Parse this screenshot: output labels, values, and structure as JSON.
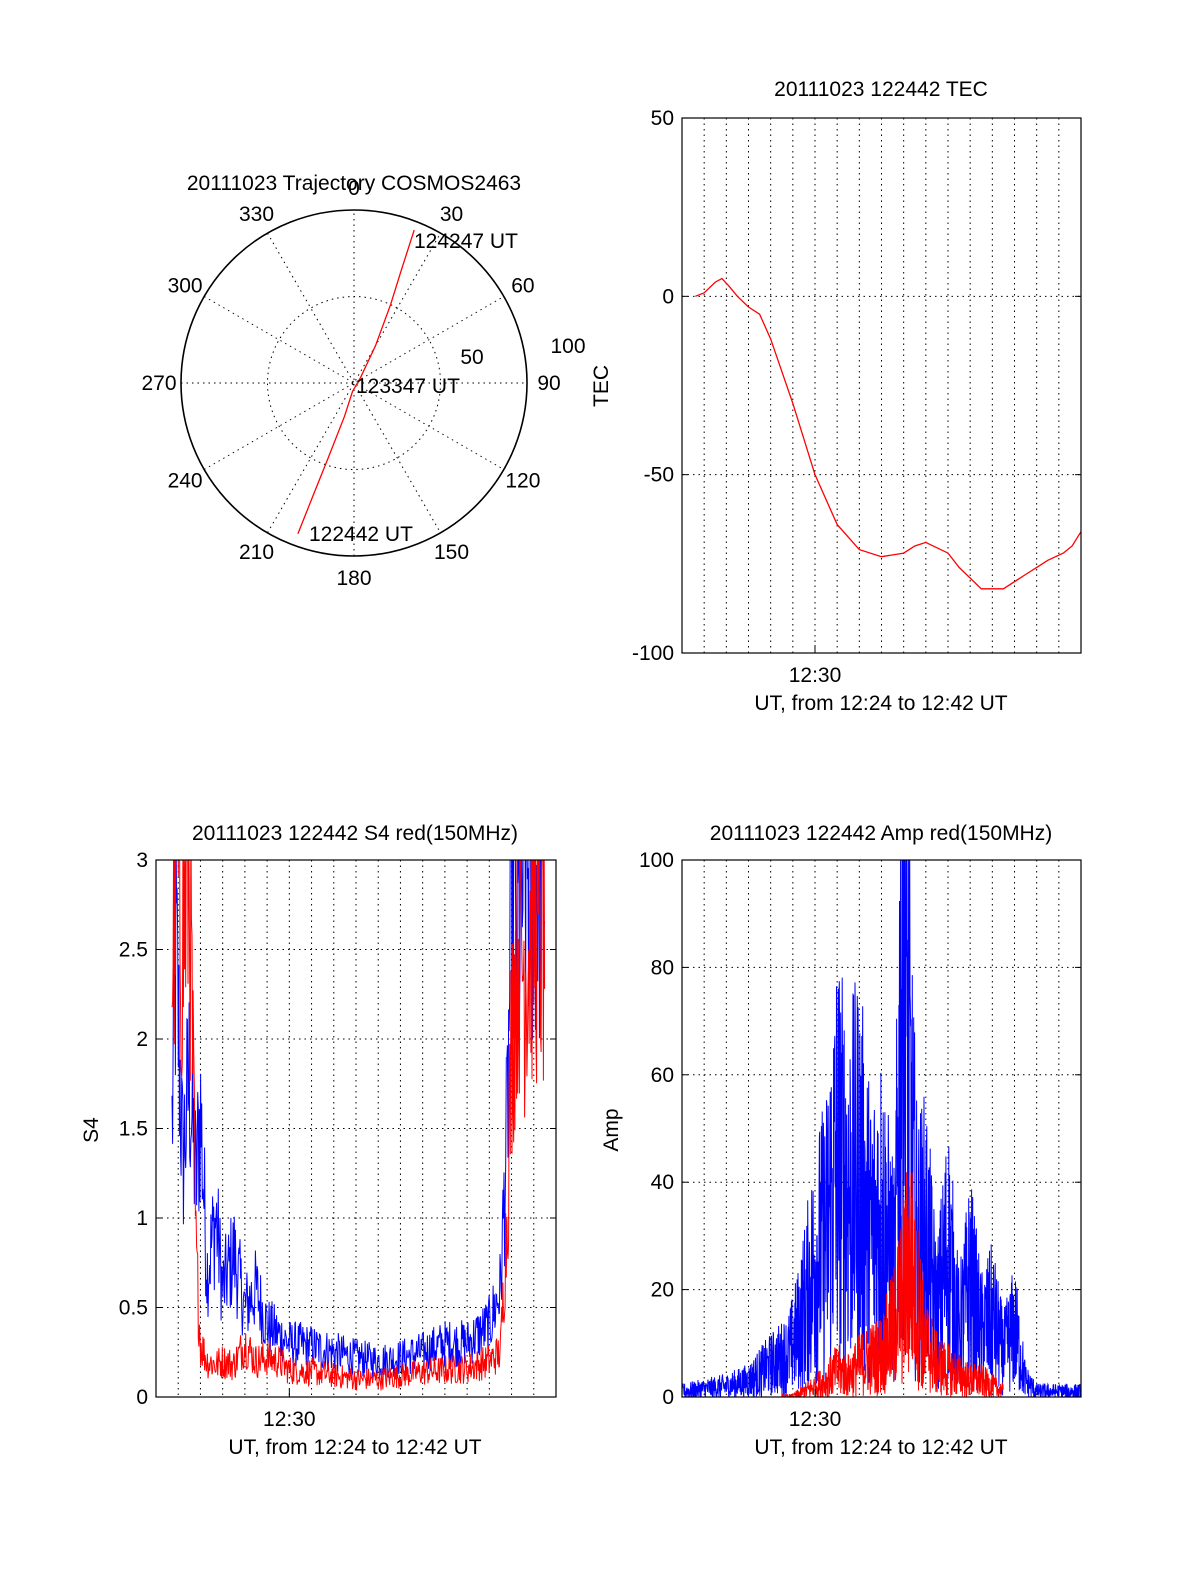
{
  "colors": {
    "red": "#ff0000",
    "blue": "#0000ff",
    "black": "#000000"
  },
  "chart_data": [
    {
      "type": "polar",
      "name": "trajectory",
      "title": "20111023 Trajectory COSMOS2463",
      "azimuth_labels": [
        "0",
        "30",
        "60",
        "90",
        "120",
        "150",
        "180",
        "210",
        "240",
        "270",
        "300",
        "330"
      ],
      "radius_labels": [
        "50",
        "100"
      ],
      "rlim": [
        0,
        100
      ],
      "grid": true,
      "series": [
        {
          "color": "red",
          "points": [
            {
              "az": 200.4,
              "r": 93
            },
            {
              "az": 200.0,
              "r": 70
            },
            {
              "az": 199.0,
              "r": 45
            },
            {
              "az": 196.0,
              "r": 20
            },
            {
              "az": 190.0,
              "r": 5
            },
            {
              "az": 50.0,
              "r": 5
            },
            {
              "az": 30.0,
              "r": 25
            },
            {
              "az": 25.0,
              "r": 50
            },
            {
              "az": 22.8,
              "r": 70
            },
            {
              "az": 21.5,
              "r": 95
            }
          ]
        }
      ],
      "annotations": [
        "124247 UT",
        "123347 UT",
        "122442 UT"
      ]
    },
    {
      "type": "line",
      "name": "tec",
      "title": "20111023 122442 TEC",
      "ylabel": "TEC",
      "xlabel": "UT, from 12:24 to 12:42 UT",
      "xlim": [
        0,
        18
      ],
      "ylim": [
        -100,
        50
      ],
      "yticks": [
        "50",
        "0",
        "-50",
        "-100"
      ],
      "xticks": [
        {
          "x": 6,
          "label": "12:30"
        }
      ],
      "vgrid_minutes": [
        1,
        2,
        3,
        4,
        5,
        6,
        7,
        8,
        9,
        10,
        11,
        12,
        13,
        14,
        15,
        16,
        17
      ],
      "hgrid": [
        0,
        -50
      ],
      "series": [
        {
          "color": "red",
          "x": [
            0.6,
            1.0,
            1.5,
            1.8,
            2.1,
            2.5,
            3.0,
            3.5,
            4.0,
            5.0,
            6.0,
            7.0,
            8.0,
            9.0,
            10.0,
            10.5,
            11.0,
            12.0,
            12.5,
            13.5,
            14.5,
            15.5,
            16.0,
            16.5,
            17.2,
            17.6,
            18.0
          ],
          "y": [
            0,
            1,
            4,
            5,
            3,
            0,
            -3,
            -5,
            -12,
            -30,
            -50,
            -64,
            -71,
            -73,
            -72,
            -70,
            -69,
            -72,
            -76,
            -82,
            -82,
            -78,
            -76,
            -74,
            -72,
            -70,
            -66
          ]
        }
      ]
    },
    {
      "type": "line",
      "name": "s4",
      "title": "20111023 122442 S4 red(150MHz)",
      "ylabel": "S4",
      "xlabel": "UT, from 12:24 to 12:42 UT",
      "xlim": [
        0,
        18
      ],
      "ylim": [
        0,
        3
      ],
      "yticks": [
        "3",
        "2.5",
        "2",
        "1.5",
        "1",
        "0.5",
        "0"
      ],
      "xticks": [
        {
          "x": 6,
          "label": "12:30"
        }
      ],
      "vgrid_minutes": [
        1,
        2,
        3,
        4,
        5,
        6,
        7,
        8,
        9,
        10,
        11,
        12,
        13,
        14,
        15,
        16,
        17
      ],
      "hgrid": [
        0.5,
        1,
        1.5,
        2,
        2.5
      ],
      "series": [
        {
          "color": "blue",
          "x": [
            0.7,
            0.9,
            1.2,
            1.5,
            1.8,
            2.0,
            2.3,
            2.7,
            3.0,
            3.5,
            4.0,
            4.5,
            5.0,
            5.5,
            6.0,
            7.0,
            8.0,
            9.0,
            10.0,
            11.0,
            12.0,
            13.0,
            14.0,
            15.0,
            15.5,
            15.8,
            16.0,
            16.3,
            16.6,
            17.0,
            17.5
          ],
          "y": [
            1.4,
            2.5,
            1.3,
            1.8,
            1.2,
            1.6,
            0.7,
            1.0,
            0.6,
            0.8,
            0.5,
            0.6,
            0.4,
            0.35,
            0.3,
            0.28,
            0.25,
            0.22,
            0.2,
            0.22,
            0.25,
            0.3,
            0.3,
            0.4,
            0.6,
            1.5,
            2.8,
            2.6,
            3.0,
            2.9,
            3.0
          ]
        },
        {
          "color": "red",
          "x": [
            0.7,
            0.9,
            1.2,
            1.5,
            1.8,
            2.0,
            2.3,
            2.7,
            3.0,
            3.5,
            4.0,
            4.5,
            5.0,
            5.5,
            6.0,
            7.0,
            8.0,
            9.0,
            10.0,
            11.0,
            12.0,
            13.0,
            14.0,
            15.0,
            15.5,
            15.8,
            16.0,
            16.3,
            16.6,
            17.0,
            17.5
          ],
          "y": [
            2.3,
            3.0,
            2.5,
            3.0,
            0.8,
            0.3,
            0.2,
            0.18,
            0.2,
            0.18,
            0.3,
            0.2,
            0.22,
            0.2,
            0.15,
            0.14,
            0.12,
            0.1,
            0.1,
            0.12,
            0.14,
            0.15,
            0.16,
            0.2,
            0.25,
            1.0,
            2.0,
            2.6,
            2.4,
            2.7,
            2.5
          ]
        }
      ]
    },
    {
      "type": "line",
      "name": "amp",
      "title": "20111023 122442 Amp red(150MHz)",
      "ylabel": "Amp",
      "xlabel": "UT, from 12:24 to 12:42 UT",
      "xlim": [
        0,
        18
      ],
      "ylim": [
        0,
        100
      ],
      "yticks": [
        "100",
        "80",
        "60",
        "40",
        "20",
        "0"
      ],
      "xticks": [
        {
          "x": 6,
          "label": "12:30"
        }
      ],
      "vgrid_minutes": [
        1,
        2,
        3,
        4,
        5,
        6,
        7,
        8,
        9,
        10,
        11,
        12,
        13,
        14,
        15,
        16,
        17
      ],
      "hgrid": [
        20,
        40,
        60,
        80
      ],
      "series": [
        {
          "color": "blue",
          "x": [
            0,
            2,
            3,
            4,
            4.8,
            5.2,
            5.6,
            6.0,
            6.5,
            7.0,
            7.5,
            8.0,
            8.5,
            9.0,
            9.3,
            9.6,
            10.0,
            10.3,
            10.6,
            11.0,
            11.5,
            12.0,
            12.5,
            13.0,
            13.5,
            14.0,
            14.5,
            15.0,
            15.5,
            16.0,
            17.0,
            18.0
          ],
          "y": [
            1,
            2,
            3,
            6,
            8,
            12,
            18,
            25,
            30,
            45,
            38,
            42,
            30,
            35,
            28,
            22,
            96,
            50,
            28,
            30,
            15,
            28,
            12,
            22,
            12,
            15,
            8,
            13,
            3,
            1,
            1,
            1
          ]
        },
        {
          "color": "red",
          "x": [
            4.5,
            5.0,
            5.5,
            6.0,
            6.5,
            7.0,
            7.5,
            8.0,
            8.5,
            9.0,
            9.5,
            10.0,
            10.3,
            10.6,
            11.0,
            11.5,
            12.0,
            12.5,
            13.0,
            13.5,
            14.0,
            14.5
          ],
          "y": [
            0,
            0,
            1,
            2,
            3,
            5,
            4,
            6,
            7,
            8,
            12,
            20,
            26,
            18,
            10,
            6,
            5,
            4,
            3,
            3,
            2,
            1
          ]
        }
      ]
    }
  ]
}
